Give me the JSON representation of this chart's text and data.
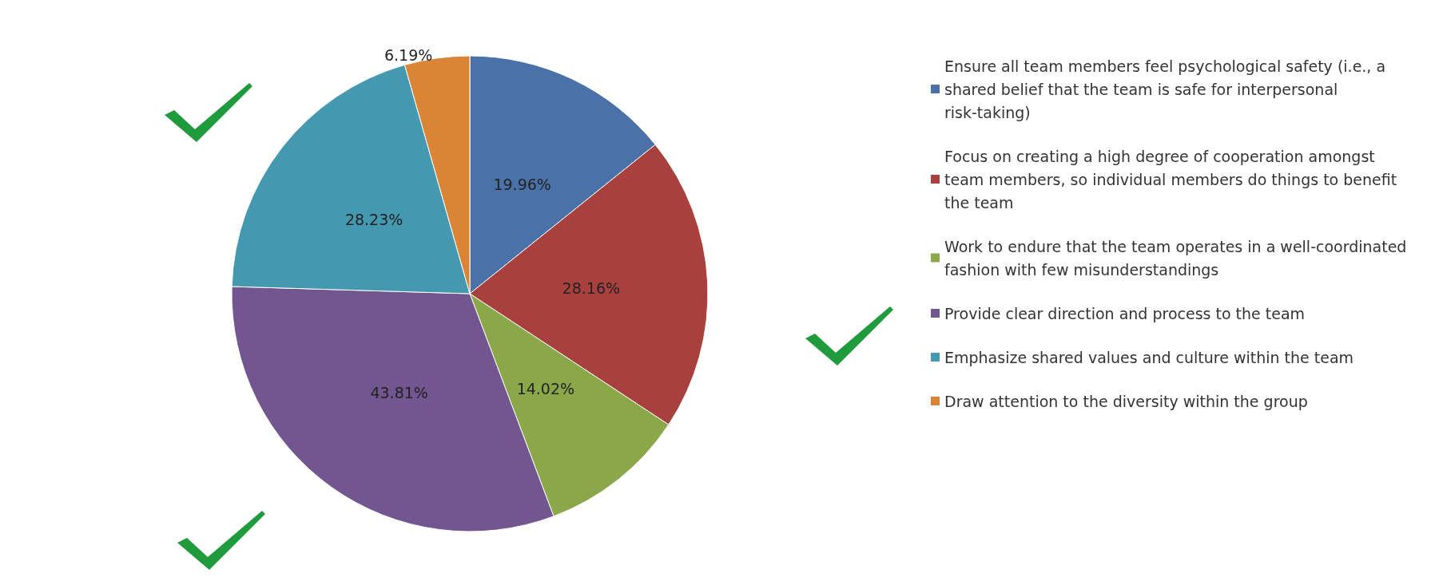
{
  "chart_data": {
    "type": "pie",
    "categories": [
      "Ensure all team members feel psychological safety (i.e., a shared belief that the team is safe for interpersonal risk-taking)",
      "Focus on creating a high degree of cooperation amongst team members, so individual members do things to benefit the team",
      "Work to endure that the team operates in a well-coordinated fashion with few misunderstandings",
      "Provide clear direction and process to the team",
      "Emphasize shared values and culture within the team",
      "Draw attention to the diversity within the group"
    ],
    "values": [
      19.96,
      28.16,
      14.02,
      43.81,
      28.23,
      6.19
    ],
    "value_labels": [
      "19.96%",
      "28.16%",
      "14.02%",
      "43.81%",
      "28.23%",
      "6.19%"
    ],
    "colors": [
      "#4a72a8",
      "#a8403e",
      "#8aa84a",
      "#71568f",
      "#4498b0",
      "#d98437"
    ],
    "legend": "right"
  }
}
